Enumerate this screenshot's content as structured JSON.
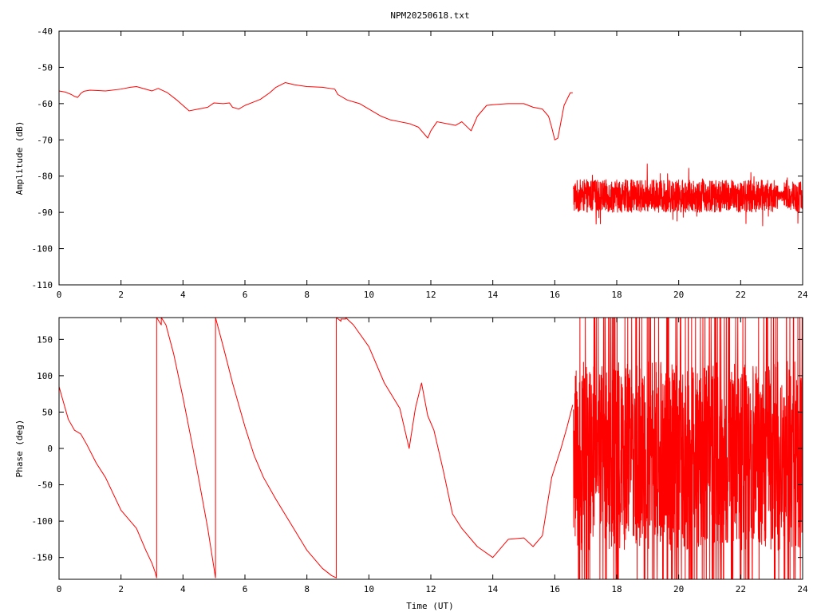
{
  "page_title": "NPM20250618.txt",
  "colors": {
    "series": "#ff0000",
    "axis": "#000000",
    "background": "#ffffff"
  },
  "chart_data": [
    {
      "type": "line",
      "title": "NPM20250618.txt",
      "xlabel": "",
      "ylabel": "Amplitude (dB)",
      "xlim": [
        0,
        24
      ],
      "ylim": [
        -110,
        -40
      ],
      "x_ticks": [
        "0",
        "2",
        "4",
        "6",
        "8",
        "10",
        "12",
        "14",
        "16",
        "18",
        "20",
        "22",
        "24"
      ],
      "y_ticks": [
        "-40",
        "-50",
        "-60",
        "-70",
        "-80",
        "-90",
        "-100",
        "-110"
      ],
      "grid": false,
      "noise_band": {
        "x_start": 16.6,
        "x_end": 24,
        "center": -85.5,
        "half_width": 4.5,
        "spike_max": 5
      },
      "series": [
        {
          "x": [
            0,
            0.2,
            0.4,
            0.5,
            0.6,
            0.7,
            0.8,
            1.0,
            1.5,
            2.0,
            2.3,
            2.5,
            3.0,
            3.2,
            3.5,
            3.8,
            4.0,
            4.2,
            4.5,
            4.8,
            5.0,
            5.3,
            5.5,
            5.6,
            5.8,
            6.0,
            6.3,
            6.5,
            6.8,
            7.0,
            7.3,
            7.6,
            8.0,
            8.5,
            8.9,
            9.0,
            9.3,
            9.7,
            10.0,
            10.4,
            10.7,
            11.0,
            11.3,
            11.6,
            11.9,
            12.0,
            12.2,
            12.5,
            12.8,
            13.0,
            13.3,
            13.5,
            13.8,
            14.0,
            14.5,
            15.0,
            15.3,
            15.6,
            15.8,
            15.9,
            16.0,
            16.1,
            16.3,
            16.5,
            16.58
          ],
          "y": [
            -56.5,
            -56.8,
            -57.5,
            -58.0,
            -58.3,
            -57.2,
            -56.6,
            -56.3,
            -56.5,
            -56.0,
            -55.5,
            -55.3,
            -56.5,
            -55.8,
            -57.0,
            -59.0,
            -60.5,
            -62.0,
            -61.5,
            -61.0,
            -59.8,
            -60.0,
            -59.8,
            -61.0,
            -61.5,
            -60.5,
            -59.5,
            -58.8,
            -57.0,
            -55.5,
            -54.2,
            -54.8,
            -55.3,
            -55.5,
            -56.0,
            -57.5,
            -59.0,
            -60.0,
            -61.5,
            -63.5,
            -64.5,
            -65.0,
            -65.5,
            -66.5,
            -69.5,
            -67.5,
            -65.0,
            -65.5,
            -66.0,
            -65.0,
            -67.5,
            -63.5,
            -60.5,
            -60.3,
            -60.0,
            -60.0,
            -61.0,
            -61.5,
            -63.5,
            -66.5,
            -70.0,
            -69.5,
            -60.5,
            -57.0,
            -57.0
          ]
        }
      ]
    },
    {
      "type": "line",
      "title": "",
      "xlabel": "Time (UT)",
      "ylabel": "Phase (deg)",
      "xlim": [
        0,
        24
      ],
      "ylim": [
        -180,
        180
      ],
      "x_ticks": [
        "0",
        "2",
        "4",
        "6",
        "8",
        "10",
        "12",
        "14",
        "16",
        "18",
        "20",
        "22",
        "24"
      ],
      "y_ticks": [
        "150",
        "100",
        "50",
        "0",
        "-50",
        "-100",
        "-150"
      ],
      "grid": false,
      "noise_band": {
        "x_start": 16.6,
        "x_end": 24,
        "center": -10,
        "half_width": 130,
        "spike_max": 180
      },
      "series": [
        {
          "x": [
            0,
            0.1,
            0.3,
            0.5,
            0.7,
            0.9,
            1.2,
            1.5,
            2.0,
            2.5,
            2.8,
            3.0,
            3.1,
            3.15,
            3.15,
            3.3,
            3.3,
            3.45,
            3.7,
            4.0,
            4.3,
            4.5,
            4.8,
            5.05,
            5.05,
            5.3,
            5.6,
            6.0,
            6.3,
            6.6,
            7.0,
            7.5,
            8.0,
            8.5,
            8.8,
            8.95,
            8.95,
            9.1,
            9.1,
            9.25,
            9.25,
            9.5,
            10.0,
            10.5,
            11.0,
            11.3,
            11.5,
            11.7,
            11.9,
            12.1,
            12.4,
            12.7,
            13.0,
            13.5,
            14.0,
            14.5,
            15.0,
            15.3,
            15.6,
            15.9,
            16.2,
            16.4,
            16.58
          ],
          "y": [
            85,
            70,
            40,
            25,
            20,
            5,
            -20,
            -40,
            -85,
            -110,
            -140,
            -158,
            -170,
            -178,
            180,
            170,
            180,
            170,
            130,
            70,
            5,
            -40,
            -110,
            -178,
            180,
            140,
            90,
            30,
            -10,
            -40,
            -70,
            -105,
            -140,
            -165,
            -175,
            -178,
            180,
            175,
            178,
            178,
            180,
            170,
            140,
            90,
            55,
            0,
            55,
            90,
            45,
            25,
            -30,
            -90,
            -110,
            -135,
            -150,
            -125,
            -123,
            -135,
            -120,
            -40,
            0,
            30,
            60
          ]
        }
      ]
    }
  ]
}
